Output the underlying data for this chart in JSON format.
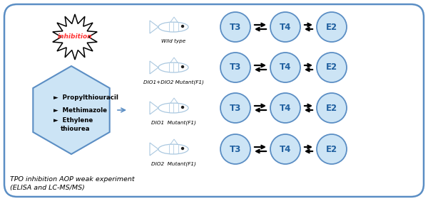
{
  "bg_color": "#ffffff",
  "border_color": "#5b8ec4",
  "title_text": "TPO inhibition AOP weak experiment\n(ELISA and LC-MS/MS)",
  "inhibition_text": "inhibition",
  "hex_items": [
    "Propylthiouracil",
    "Methimazole",
    "Ethylene\nthiourea"
  ],
  "row_labels": [
    "Wild type",
    "DIO1+DIO2 Mutant(F1)",
    "DIO1  Mutant(F1)",
    "DIO2  Mutant(F1)"
  ],
  "circle_labels": [
    "T3",
    "T4",
    "E2"
  ],
  "circle_color": "#cce4f5",
  "circle_edge_color": "#5b8ec4",
  "hex_color": "#cce4f5",
  "hex_edge_color": "#5b8ec4",
  "arrow_color": "#000000",
  "fish_color": "#aac8e0",
  "inhibition_color": "#ff3333",
  "label_italic_indices": [
    1,
    2,
    3
  ],
  "figw": 6.0,
  "figh": 2.83,
  "dpi": 100
}
